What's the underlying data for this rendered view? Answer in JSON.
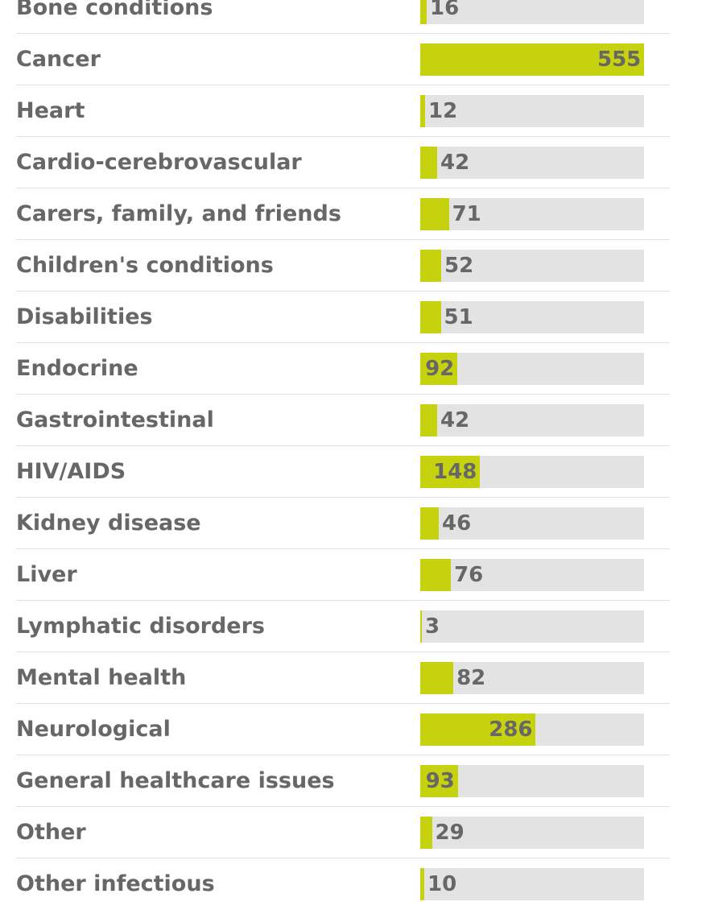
{
  "chart_data": {
    "type": "bar",
    "orientation": "horizontal",
    "categories": [
      "Bone conditions",
      "Cancer",
      "Heart",
      "Cardio-cerebrovascular",
      "Carers, family, and friends",
      "Children's conditions",
      "Disabilities",
      "Endocrine",
      "Gastrointestinal",
      "HIV/AIDS",
      "Kidney disease",
      "Liver",
      "Lymphatic disorders",
      "Mental health",
      "Neurological",
      "General healthcare issues",
      "Other",
      "Other infectious"
    ],
    "values": [
      16,
      555,
      12,
      42,
      71,
      52,
      51,
      92,
      42,
      148,
      46,
      76,
      3,
      82,
      286,
      93,
      29,
      10
    ],
    "xlim": [
      0,
      555
    ],
    "grid": false,
    "legend": "none",
    "colors": {
      "bar": "#c6d20e",
      "track": "#e3e3e3",
      "text": "#676767",
      "divider": "#e0e0e0"
    }
  }
}
